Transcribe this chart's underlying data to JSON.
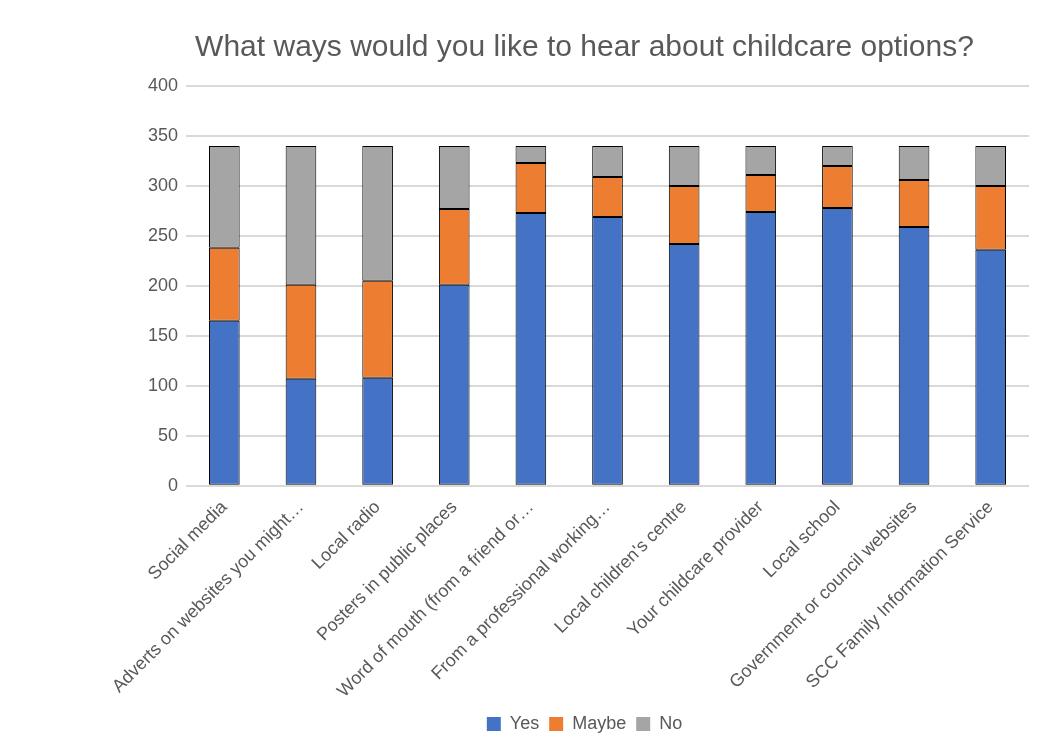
{
  "chart_data": {
    "type": "bar",
    "title": "What ways would you like to hear about childcare options?",
    "stacked": true,
    "categories": [
      "Social media",
      "Adverts on websites you might…",
      "Local radio",
      "Posters in public places",
      "Word of mouth (from a friend or…",
      "From a professional working…",
      "Local children's centre",
      "Your childcare provider",
      "Local school",
      "Government or council websites",
      "SCC Family Information Service"
    ],
    "series": [
      {
        "name": "Yes",
        "color": "#4472c4",
        "values": [
          165,
          107,
          108,
          201,
          273,
          269,
          242,
          274,
          278,
          259,
          236
        ]
      },
      {
        "name": "Maybe",
        "color": "#ed7d31",
        "values": [
          73,
          94,
          97,
          76,
          50,
          40,
          58,
          37,
          42,
          47,
          64
        ]
      },
      {
        "name": "No",
        "color": "#a5a5a5",
        "values": [
          102,
          139,
          135,
          63,
          17,
          31,
          40,
          29,
          20,
          34,
          40
        ]
      }
    ],
    "ylim": [
      0,
      400
    ],
    "yticks": [
      0,
      50,
      100,
      150,
      200,
      250,
      300,
      350,
      400
    ],
    "grid": "y",
    "legend": "bottom"
  }
}
